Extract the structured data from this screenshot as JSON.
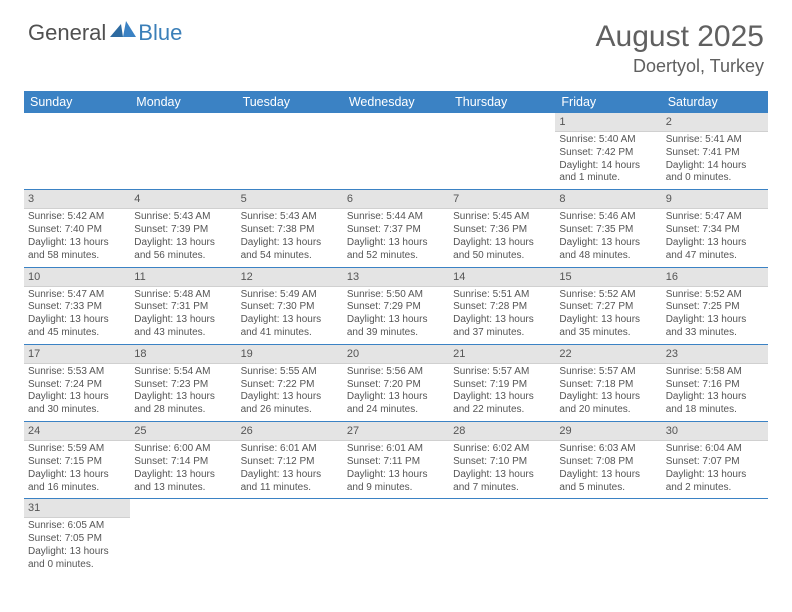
{
  "logo": {
    "text1": "General",
    "text2": "Blue"
  },
  "title": "August 2025",
  "location": "Doertyol, Turkey",
  "colors": {
    "header_bg": "#3b82c4",
    "header_text": "#ffffff",
    "daynum_bg": "#e4e4e4",
    "text": "#555555",
    "row_border": "#3b82c4"
  },
  "day_headers": [
    "Sunday",
    "Monday",
    "Tuesday",
    "Wednesday",
    "Thursday",
    "Friday",
    "Saturday"
  ],
  "weeks": [
    [
      null,
      null,
      null,
      null,
      null,
      {
        "n": "1",
        "sr": "Sunrise: 5:40 AM",
        "ss": "Sunset: 7:42 PM",
        "dl": "Daylight: 14 hours and 1 minute."
      },
      {
        "n": "2",
        "sr": "Sunrise: 5:41 AM",
        "ss": "Sunset: 7:41 PM",
        "dl": "Daylight: 14 hours and 0 minutes."
      }
    ],
    [
      {
        "n": "3",
        "sr": "Sunrise: 5:42 AM",
        "ss": "Sunset: 7:40 PM",
        "dl": "Daylight: 13 hours and 58 minutes."
      },
      {
        "n": "4",
        "sr": "Sunrise: 5:43 AM",
        "ss": "Sunset: 7:39 PM",
        "dl": "Daylight: 13 hours and 56 minutes."
      },
      {
        "n": "5",
        "sr": "Sunrise: 5:43 AM",
        "ss": "Sunset: 7:38 PM",
        "dl": "Daylight: 13 hours and 54 minutes."
      },
      {
        "n": "6",
        "sr": "Sunrise: 5:44 AM",
        "ss": "Sunset: 7:37 PM",
        "dl": "Daylight: 13 hours and 52 minutes."
      },
      {
        "n": "7",
        "sr": "Sunrise: 5:45 AM",
        "ss": "Sunset: 7:36 PM",
        "dl": "Daylight: 13 hours and 50 minutes."
      },
      {
        "n": "8",
        "sr": "Sunrise: 5:46 AM",
        "ss": "Sunset: 7:35 PM",
        "dl": "Daylight: 13 hours and 48 minutes."
      },
      {
        "n": "9",
        "sr": "Sunrise: 5:47 AM",
        "ss": "Sunset: 7:34 PM",
        "dl": "Daylight: 13 hours and 47 minutes."
      }
    ],
    [
      {
        "n": "10",
        "sr": "Sunrise: 5:47 AM",
        "ss": "Sunset: 7:33 PM",
        "dl": "Daylight: 13 hours and 45 minutes."
      },
      {
        "n": "11",
        "sr": "Sunrise: 5:48 AM",
        "ss": "Sunset: 7:31 PM",
        "dl": "Daylight: 13 hours and 43 minutes."
      },
      {
        "n": "12",
        "sr": "Sunrise: 5:49 AM",
        "ss": "Sunset: 7:30 PM",
        "dl": "Daylight: 13 hours and 41 minutes."
      },
      {
        "n": "13",
        "sr": "Sunrise: 5:50 AM",
        "ss": "Sunset: 7:29 PM",
        "dl": "Daylight: 13 hours and 39 minutes."
      },
      {
        "n": "14",
        "sr": "Sunrise: 5:51 AM",
        "ss": "Sunset: 7:28 PM",
        "dl": "Daylight: 13 hours and 37 minutes."
      },
      {
        "n": "15",
        "sr": "Sunrise: 5:52 AM",
        "ss": "Sunset: 7:27 PM",
        "dl": "Daylight: 13 hours and 35 minutes."
      },
      {
        "n": "16",
        "sr": "Sunrise: 5:52 AM",
        "ss": "Sunset: 7:25 PM",
        "dl": "Daylight: 13 hours and 33 minutes."
      }
    ],
    [
      {
        "n": "17",
        "sr": "Sunrise: 5:53 AM",
        "ss": "Sunset: 7:24 PM",
        "dl": "Daylight: 13 hours and 30 minutes."
      },
      {
        "n": "18",
        "sr": "Sunrise: 5:54 AM",
        "ss": "Sunset: 7:23 PM",
        "dl": "Daylight: 13 hours and 28 minutes."
      },
      {
        "n": "19",
        "sr": "Sunrise: 5:55 AM",
        "ss": "Sunset: 7:22 PM",
        "dl": "Daylight: 13 hours and 26 minutes."
      },
      {
        "n": "20",
        "sr": "Sunrise: 5:56 AM",
        "ss": "Sunset: 7:20 PM",
        "dl": "Daylight: 13 hours and 24 minutes."
      },
      {
        "n": "21",
        "sr": "Sunrise: 5:57 AM",
        "ss": "Sunset: 7:19 PM",
        "dl": "Daylight: 13 hours and 22 minutes."
      },
      {
        "n": "22",
        "sr": "Sunrise: 5:57 AM",
        "ss": "Sunset: 7:18 PM",
        "dl": "Daylight: 13 hours and 20 minutes."
      },
      {
        "n": "23",
        "sr": "Sunrise: 5:58 AM",
        "ss": "Sunset: 7:16 PM",
        "dl": "Daylight: 13 hours and 18 minutes."
      }
    ],
    [
      {
        "n": "24",
        "sr": "Sunrise: 5:59 AM",
        "ss": "Sunset: 7:15 PM",
        "dl": "Daylight: 13 hours and 16 minutes."
      },
      {
        "n": "25",
        "sr": "Sunrise: 6:00 AM",
        "ss": "Sunset: 7:14 PM",
        "dl": "Daylight: 13 hours and 13 minutes."
      },
      {
        "n": "26",
        "sr": "Sunrise: 6:01 AM",
        "ss": "Sunset: 7:12 PM",
        "dl": "Daylight: 13 hours and 11 minutes."
      },
      {
        "n": "27",
        "sr": "Sunrise: 6:01 AM",
        "ss": "Sunset: 7:11 PM",
        "dl": "Daylight: 13 hours and 9 minutes."
      },
      {
        "n": "28",
        "sr": "Sunrise: 6:02 AM",
        "ss": "Sunset: 7:10 PM",
        "dl": "Daylight: 13 hours and 7 minutes."
      },
      {
        "n": "29",
        "sr": "Sunrise: 6:03 AM",
        "ss": "Sunset: 7:08 PM",
        "dl": "Daylight: 13 hours and 5 minutes."
      },
      {
        "n": "30",
        "sr": "Sunrise: 6:04 AM",
        "ss": "Sunset: 7:07 PM",
        "dl": "Daylight: 13 hours and 2 minutes."
      }
    ],
    [
      {
        "n": "31",
        "sr": "Sunrise: 6:05 AM",
        "ss": "Sunset: 7:05 PM",
        "dl": "Daylight: 13 hours and 0 minutes."
      },
      null,
      null,
      null,
      null,
      null,
      null
    ]
  ]
}
